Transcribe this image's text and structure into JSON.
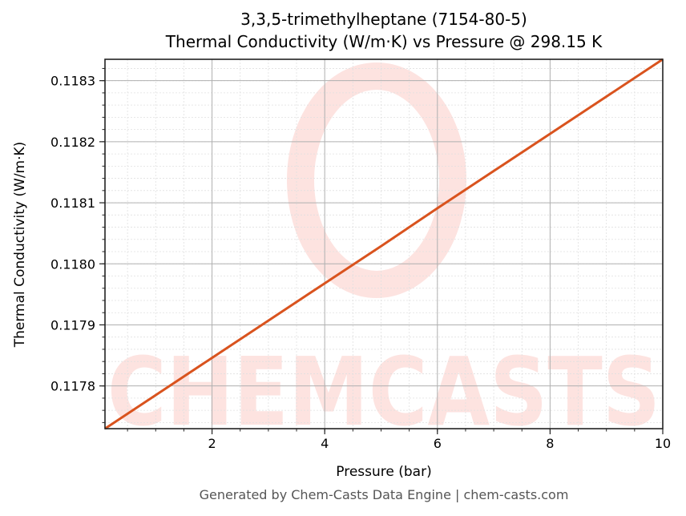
{
  "header": {
    "title_line1": "3,3,5-trimethylheptane (7154-80-5)",
    "title_line2": "Thermal Conductivity (W/m·K) vs Pressure @ 298.15 K"
  },
  "footer": {
    "text": "Generated by Chem-Casts Data Engine | chem-casts.com"
  },
  "watermark": {
    "text": "CHEMCASTS",
    "color": "#fde3e0"
  },
  "colors": {
    "line": "#d9531e",
    "major_grid": "#b0b0b0",
    "minor_grid": "#e0e0e0",
    "axis": "#222222"
  },
  "chart_data": {
    "type": "line",
    "title": "3,3,5-trimethylheptane (7154-80-5)\nThermal Conductivity (W/m·K) vs Pressure @ 298.15 K",
    "xlabel": "Pressure (bar)",
    "ylabel": "Thermal Conductivity (W/m·K)",
    "xlim": [
      0.1,
      10
    ],
    "ylim": [
      0.11773,
      0.118335
    ],
    "x_ticks": [
      2,
      4,
      6,
      8,
      10
    ],
    "x_tick_labels": [
      "2",
      "4",
      "6",
      "8",
      "10"
    ],
    "x_minor_step": 0.5,
    "y_ticks": [
      0.1178,
      0.1179,
      0.118,
      0.1181,
      0.1182,
      0.1183
    ],
    "y_tick_labels": [
      "0.1178",
      "0.1179",
      "0.1180",
      "0.1181",
      "0.1182",
      "0.1183"
    ],
    "y_minor_step": 2e-05,
    "grid": true,
    "legend": null,
    "series": [
      {
        "name": "Thermal Conductivity",
        "color": "#d9531e",
        "x": [
          0.1,
          1,
          2,
          3,
          4,
          5,
          6,
          7,
          8,
          9,
          10
        ],
        "values": [
          0.11773,
          0.117785,
          0.117846,
          0.117907,
          0.117968,
          0.118029,
          0.118091,
          0.118152,
          0.118213,
          0.118274,
          0.118335
        ]
      }
    ]
  }
}
